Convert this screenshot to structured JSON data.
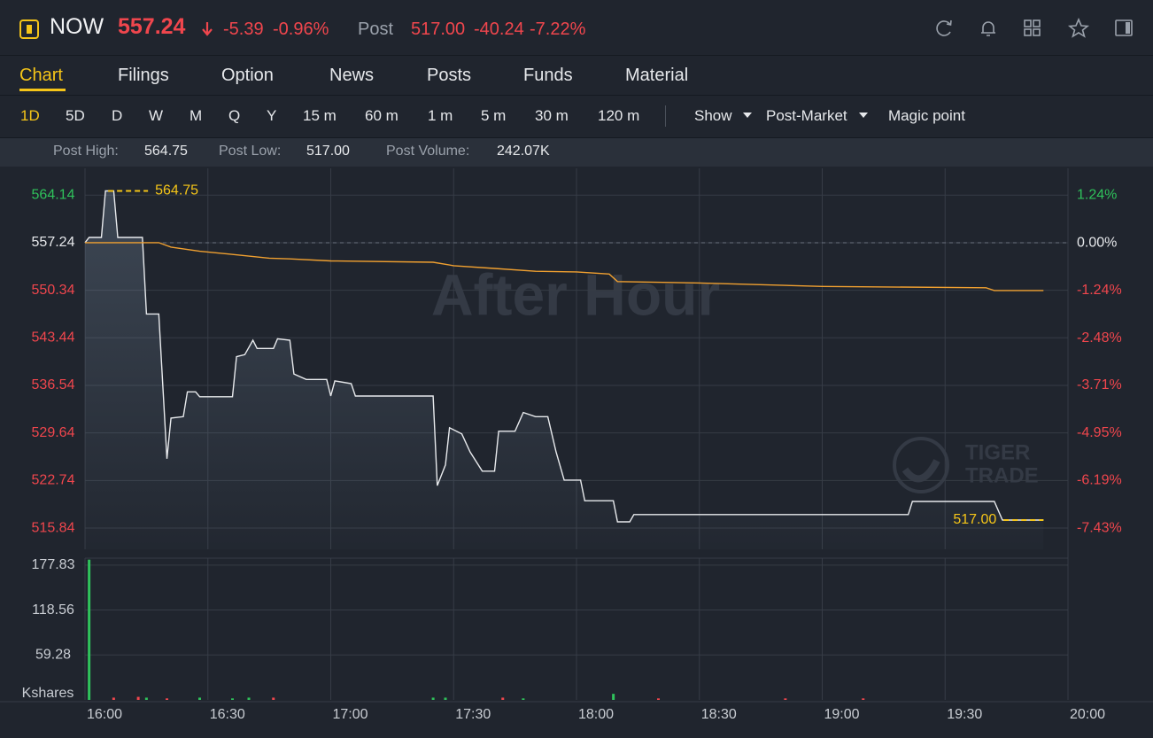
{
  "header": {
    "symbol": "NOW",
    "price": "557.24",
    "change": "-5.39",
    "change_pct": "-0.96%",
    "post_label": "Post",
    "post_price": "517.00",
    "post_change": "-40.24",
    "post_change_pct": "-7.22%"
  },
  "tabs": [
    "Chart",
    "Filings",
    "Option",
    "News",
    "Posts",
    "Funds",
    "Material"
  ],
  "periods": [
    "1D",
    "5D",
    "D",
    "W",
    "M",
    "Q",
    "Y",
    "15 m",
    "60 m",
    "1 m",
    "5 m",
    "30 m",
    "120 m"
  ],
  "tools": [
    "Show",
    "Post-Market",
    "Magic point"
  ],
  "stats": [
    {
      "label": "Post High:",
      "value": "564.75"
    },
    {
      "label": "Post Low:",
      "value": "517.00"
    },
    {
      "label": "Post Volume:",
      "value": "242.07K"
    }
  ],
  "chart_data": [
    {
      "type": "line",
      "watermark": "After Hour",
      "logo": [
        "TIGER",
        "TRADE"
      ],
      "reference": 557.24,
      "xlim": [
        "16:00",
        "20:00"
      ],
      "xticks": [
        "16:00",
        "16:30",
        "17:00",
        "17:30",
        "18:00",
        "18:30",
        "19:00",
        "19:30",
        "20:00"
      ],
      "ylim": [
        512.76,
        568.03
      ],
      "yticks": [
        564.14,
        557.24,
        550.34,
        543.44,
        536.54,
        529.64,
        522.74,
        515.84
      ],
      "y2lim": [
        -7.98,
        1.94
      ],
      "y2ticks": [
        {
          "value": 1.24,
          "label": "1.24%"
        },
        {
          "value": 0,
          "label": "0.00%"
        },
        {
          "value": -1.24,
          "label": "-1.24%"
        },
        {
          "value": -2.48,
          "label": "-2.48%"
        },
        {
          "value": -3.71,
          "label": "-3.71%"
        },
        {
          "value": -4.95,
          "label": "-4.95%"
        },
        {
          "value": -6.19,
          "label": "-6.19%"
        },
        {
          "value": -7.43,
          "label": "-7.43%"
        }
      ],
      "series": [
        {
          "color": "#e8eaed",
          "x": [
            "16:00",
            "16:01",
            "16:04",
            "16:05",
            "16:07",
            "16:08",
            "16:14",
            "16:15",
            "16:18",
            "16:20",
            "16:21",
            "16:24",
            "16:25",
            "16:27",
            "16:28",
            "16:36",
            "16:37",
            "16:39",
            "16:41",
            "16:42",
            "16:46",
            "16:47",
            "16:50",
            "16:51",
            "16:54",
            "16:59",
            "17:00",
            "17:01",
            "17:05",
            "17:06",
            "17:25",
            "17:26",
            "17:28",
            "17:29",
            "17:32",
            "17:34",
            "17:37",
            "17:40",
            "17:41",
            "17:45",
            "17:47",
            "17:50",
            "17:53",
            "17:55",
            "17:57",
            "18:01",
            "18:02",
            "18:09",
            "18:10",
            "18:13",
            "18:14",
            "19:21",
            "19:22",
            "19:42",
            "19:44",
            "19:54"
          ],
          "values": [
            557.24,
            558.0,
            558.0,
            564.75,
            564.75,
            558.0,
            558.0,
            546.9,
            546.9,
            525.9,
            531.8,
            532.0,
            535.6,
            535.6,
            534.9,
            534.9,
            540.7,
            541.0,
            543.1,
            541.9,
            541.9,
            543.3,
            543.1,
            538.2,
            537.4,
            537.4,
            535.0,
            537.2,
            536.8,
            535.0,
            535.0,
            522.0,
            525.0,
            530.4,
            529.5,
            526.9,
            524.1,
            524.1,
            529.9,
            529.9,
            532.6,
            532.0,
            532.0,
            526.9,
            522.8,
            522.8,
            519.8,
            519.8,
            516.75,
            516.75,
            517.8,
            517.8,
            519.7,
            519.7,
            517.0,
            517.0
          ]
        },
        {
          "color": "#f0a030",
          "x": [
            "16:00",
            "16:18",
            "16:21",
            "16:28",
            "16:35",
            "16:45",
            "16:50",
            "17:00",
            "17:25",
            "17:30",
            "17:40",
            "17:50",
            "18:00",
            "18:08",
            "18:10",
            "18:30",
            "19:00",
            "19:40",
            "19:42",
            "19:54"
          ],
          "values": [
            557.24,
            557.24,
            556.6,
            556.0,
            555.6,
            555.0,
            554.9,
            554.6,
            554.4,
            553.9,
            553.5,
            553.1,
            553.0,
            552.7,
            551.6,
            551.4,
            550.9,
            550.7,
            550.3,
            550.3
          ]
        }
      ],
      "annotations": [
        {
          "text": "564.75",
          "x": "16:05",
          "y": 564.75,
          "color": "#f5c518"
        },
        {
          "text": "517.00",
          "x": "19:54",
          "y": 517,
          "color": "#f5c518"
        }
      ]
    },
    {
      "type": "bar",
      "ylabel": "Kshares",
      "xlim": [
        "16:00",
        "20:00"
      ],
      "xticks": [
        "16:00",
        "16:30",
        "17:00",
        "17:30",
        "18:00",
        "18:30",
        "19:00",
        "19:30",
        "20:00"
      ],
      "ylim": [
        0,
        187
      ],
      "yticks": [
        177.83,
        118.56,
        59.28
      ],
      "x": [
        "16:01",
        "16:07",
        "16:13",
        "16:15",
        "16:20",
        "16:28",
        "16:36",
        "16:40",
        "16:46",
        "17:25",
        "17:28",
        "17:42",
        "17:47",
        "18:09",
        "18:20",
        "18:51",
        "19:10"
      ],
      "values": [
        185,
        3,
        4,
        3,
        2,
        3,
        2,
        3,
        3,
        3,
        3,
        3,
        2,
        8,
        2,
        2,
        2
      ],
      "colors": [
        "#2fc25b",
        "#f0464d",
        "#f0464d",
        "#2fc25b",
        "#f0464d",
        "#2fc25b",
        "#2fc25b",
        "#2fc25b",
        "#f0464d",
        "#2fc25b",
        "#2fc25b",
        "#f0464d",
        "#2fc25b",
        "#2fc25b",
        "#f0464d",
        "#f0464d",
        "#f0464d"
      ]
    }
  ]
}
